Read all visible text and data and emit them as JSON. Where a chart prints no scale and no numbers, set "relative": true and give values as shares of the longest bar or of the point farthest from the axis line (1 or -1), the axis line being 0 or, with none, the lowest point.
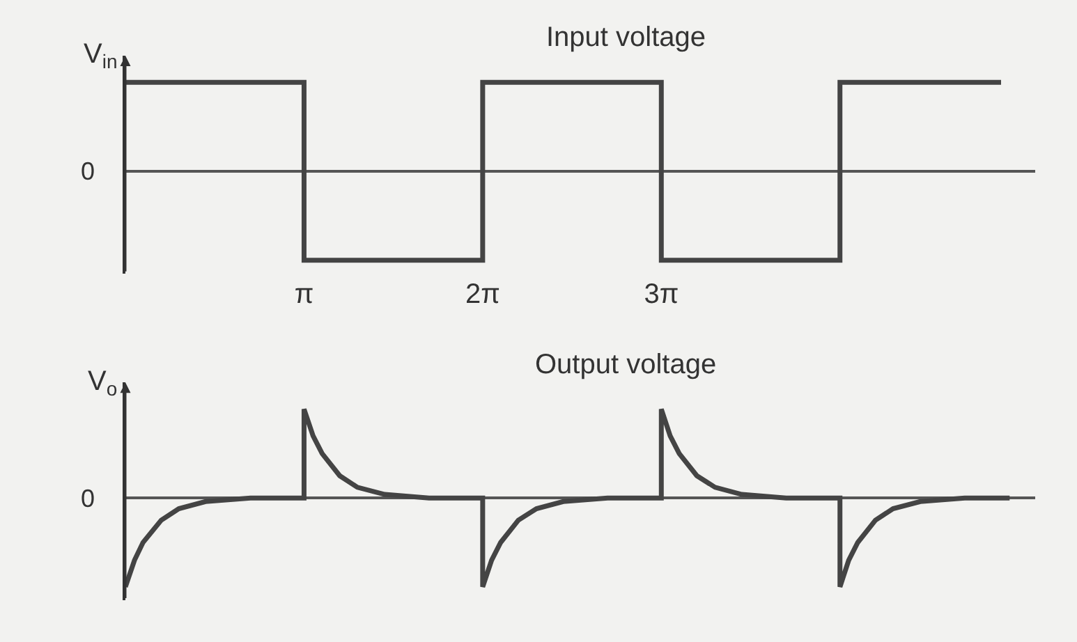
{
  "chart_data": [
    {
      "type": "line",
      "title": "Input voltage",
      "ylabel": "V$_{in}$",
      "relative": true,
      "xlim": [
        0,
        16
      ],
      "xticks": [
        {
          "value": 3.1416,
          "label": "π"
        },
        {
          "value": 6.2832,
          "label": "2π"
        },
        {
          "value": 9.4248,
          "label": "3π"
        }
      ],
      "tick_labels": "x",
      "annotations": [
        "0"
      ],
      "series": [
        {
          "color": "#444444",
          "x": [
            0,
            3.1416,
            3.1416,
            6.2832,
            6.2832,
            9.4248,
            9.4248,
            12.5664,
            12.5664,
            15.4
          ],
          "values": [
            1,
            1,
            -1,
            -1,
            1,
            1,
            -1,
            -1,
            1,
            1
          ]
        }
      ]
    },
    {
      "type": "line",
      "title": "Output voltage",
      "ylabel": "V$_{o}$",
      "relative": true,
      "xlim": [
        0,
        16
      ],
      "tick_labels": false,
      "annotations": [
        "0"
      ],
      "series": [
        {
          "color": "#444444",
          "x": [
            0,
            0.16,
            0.31,
            0.63,
            0.94,
            1.41,
            2.2,
            3.1416,
            3.1416,
            3.3,
            3.46,
            3.77,
            4.08,
            4.56,
            5.34,
            6.2832,
            6.2832,
            6.44,
            6.6,
            6.91,
            7.23,
            7.7,
            8.48,
            9.4248,
            9.4248,
            9.58,
            9.74,
            10.05,
            10.37,
            10.84,
            11.62,
            12.5664,
            12.5664,
            12.72,
            12.88,
            13.19,
            13.5,
            13.98,
            14.76,
            15.55
          ],
          "values": [
            -1,
            -0.7,
            -0.5,
            -0.25,
            -0.12,
            -0.04,
            0,
            0,
            1,
            0.7,
            0.5,
            0.25,
            0.12,
            0.04,
            0,
            0,
            -1,
            -0.7,
            -0.5,
            -0.25,
            -0.12,
            -0.04,
            0,
            0,
            1,
            0.7,
            0.5,
            0.25,
            0.12,
            0.04,
            0,
            0,
            -1,
            -0.7,
            -0.5,
            -0.25,
            -0.12,
            -0.04,
            0,
            0
          ]
        }
      ]
    }
  ]
}
